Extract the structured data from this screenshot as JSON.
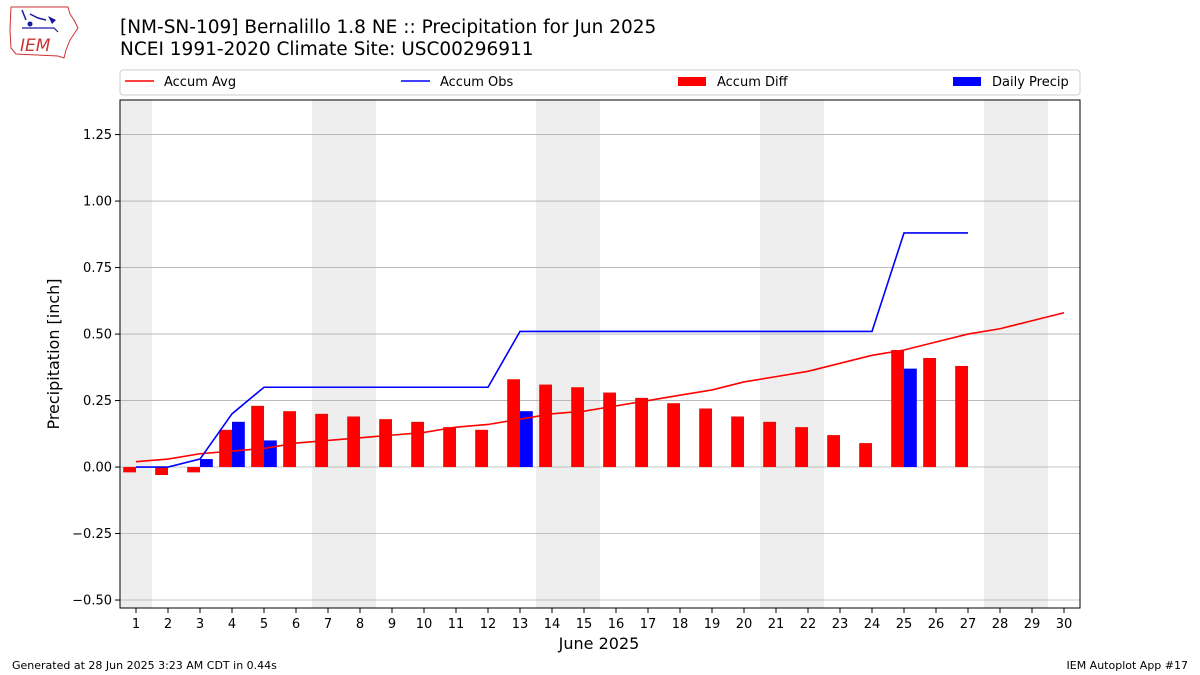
{
  "header": {
    "title_line1": "[NM-SN-109] Bernalillo 1.8 NE :: Precipitation for Jun 2025",
    "title_line2": "NCEI 1991-2020 Climate Site: USC00296911",
    "logo_text": "IEM"
  },
  "footer": {
    "left": "Generated at 28 Jun 2025 3:23 AM CDT in 0.44s",
    "right": "IEM Autoplot App #17"
  },
  "colors": {
    "accum_avg": "#ff0000",
    "accum_obs": "#0000ff",
    "accum_diff": "#ff0000",
    "daily_precip": "#0000ff",
    "weekend_shade": "#eeeeee",
    "grid": "#b0b0b0"
  },
  "chart_data": {
    "type": "bar",
    "xlabel": "June 2025",
    "ylabel": "Precipitation [inch]",
    "xlim": [
      0.5,
      30.5
    ],
    "ylim": [
      -0.53,
      1.38
    ],
    "y_ticks": [
      -0.5,
      -0.25,
      0.0,
      0.25,
      0.5,
      0.75,
      1.0,
      1.25
    ],
    "y_tick_labels": [
      "−0.50",
      "−0.25",
      "0.00",
      "0.25",
      "0.50",
      "0.75",
      "1.00",
      "1.25"
    ],
    "x": [
      1,
      2,
      3,
      4,
      5,
      6,
      7,
      8,
      9,
      10,
      11,
      12,
      13,
      14,
      15,
      16,
      17,
      18,
      19,
      20,
      21,
      22,
      23,
      24,
      25,
      26,
      27,
      28,
      29,
      30
    ],
    "grid": "horizontal",
    "legend_placement": "top, above plot, 4 columns",
    "weekend_days": [
      1,
      7,
      8,
      14,
      15,
      21,
      22,
      28,
      29
    ],
    "series": [
      {
        "name": "Accum Avg",
        "kind": "line",
        "color": "#ff0000",
        "x": [
          1,
          2,
          3,
          4,
          5,
          6,
          7,
          8,
          9,
          10,
          11,
          12,
          13,
          14,
          15,
          16,
          17,
          18,
          19,
          20,
          21,
          22,
          23,
          24,
          25,
          26,
          27,
          28,
          29,
          30
        ],
        "values": [
          0.02,
          0.03,
          0.05,
          0.06,
          0.07,
          0.09,
          0.1,
          0.11,
          0.12,
          0.13,
          0.15,
          0.16,
          0.18,
          0.2,
          0.21,
          0.23,
          0.25,
          0.27,
          0.29,
          0.32,
          0.34,
          0.36,
          0.39,
          0.42,
          0.44,
          0.47,
          0.5,
          0.52,
          0.55,
          0.58
        ]
      },
      {
        "name": "Accum Obs",
        "kind": "line",
        "color": "#0000ff",
        "x": [
          1,
          2,
          3,
          4,
          5,
          6,
          7,
          8,
          9,
          10,
          11,
          12,
          13,
          14,
          15,
          16,
          17,
          18,
          19,
          20,
          21,
          22,
          23,
          24,
          25,
          26,
          27
        ],
        "values": [
          0.0,
          0.0,
          0.03,
          0.2,
          0.3,
          0.3,
          0.3,
          0.3,
          0.3,
          0.3,
          0.3,
          0.3,
          0.51,
          0.51,
          0.51,
          0.51,
          0.51,
          0.51,
          0.51,
          0.51,
          0.51,
          0.51,
          0.51,
          0.51,
          0.88,
          0.88,
          0.88
        ]
      },
      {
        "name": "Accum Diff",
        "kind": "bar",
        "color": "#ff0000",
        "x": [
          1,
          2,
          3,
          4,
          5,
          6,
          7,
          8,
          9,
          10,
          11,
          12,
          13,
          14,
          15,
          16,
          17,
          18,
          19,
          20,
          21,
          22,
          23,
          24,
          25,
          26,
          27
        ],
        "values": [
          -0.02,
          -0.03,
          -0.02,
          0.14,
          0.23,
          0.21,
          0.2,
          0.19,
          0.18,
          0.17,
          0.15,
          0.14,
          0.33,
          0.31,
          0.3,
          0.28,
          0.26,
          0.24,
          0.22,
          0.19,
          0.17,
          0.15,
          0.12,
          0.09,
          0.44,
          0.41,
          0.38
        ]
      },
      {
        "name": "Daily Precip",
        "kind": "bar",
        "color": "#0000ff",
        "x": [
          3,
          4,
          5,
          13,
          25
        ],
        "values": [
          0.03,
          0.17,
          0.1,
          0.21,
          0.37
        ]
      }
    ]
  }
}
